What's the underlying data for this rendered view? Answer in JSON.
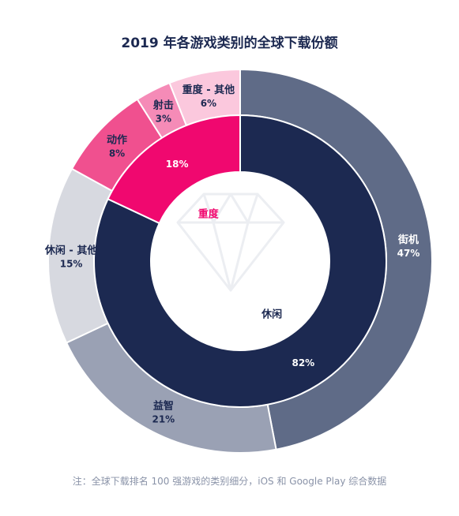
{
  "title": "2019 年各游戏类别的全球下载份额",
  "note": "注：全球下载排名 100 强游戏的类别细分，iOS 和 Google Play 综合数据",
  "chart_data": {
    "type": "donut",
    "inner": [
      {
        "name": "休闲",
        "value": 82,
        "label": "82%",
        "color": "#1c2951"
      },
      {
        "name": "重度",
        "value": 18,
        "label": "18%",
        "color": "#f0086f"
      }
    ],
    "outer": [
      {
        "name": "街机",
        "value": 47,
        "label": "47%",
        "color": "#5f6b87",
        "text_color": "#ffffff"
      },
      {
        "name": "益智",
        "value": 21,
        "label": "21%",
        "color": "#9aa1b4",
        "text_color": "#1c2951"
      },
      {
        "name": "休闲 - 其他",
        "value": 15,
        "label": "15%",
        "color": "#d7d9e0",
        "text_color": "#1c2951"
      },
      {
        "name": "动作",
        "value": 8,
        "label": "8%",
        "color": "#f0508f",
        "text_color": "#1c2951"
      },
      {
        "name": "射击",
        "value": 3,
        "label": "3%",
        "color": "#f58bb7",
        "text_color": "#1c2951"
      },
      {
        "name": "重度 - 其他",
        "value": 6,
        "label": "6%",
        "color": "#fbc8dd",
        "text_color": "#1c2951"
      }
    ]
  }
}
